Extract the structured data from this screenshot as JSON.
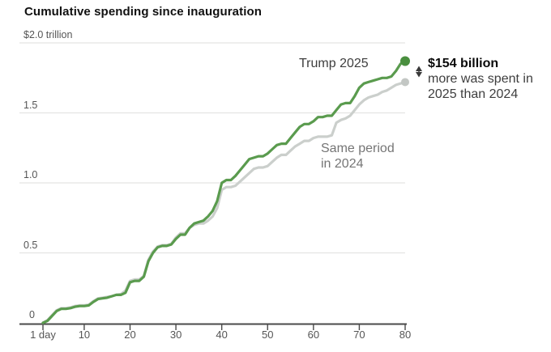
{
  "title": "Cumulative spending since inauguration",
  "labels": {
    "trump": "Trump 2025",
    "period_line1": "Same period",
    "period_line2": "in 2024"
  },
  "chart_data": {
    "type": "line",
    "title": "Cumulative spending since inauguration",
    "unit": "USD trillions",
    "xlabel": "",
    "ylabel": "",
    "xlim": [
      1,
      80
    ],
    "ylim": [
      0,
      2.0
    ],
    "grid": true,
    "legend_position": "inline-labels",
    "x_ticks": [
      {
        "value": 1,
        "label": "1 day"
      },
      {
        "value": 10,
        "label": "10"
      },
      {
        "value": 20,
        "label": "20"
      },
      {
        "value": 30,
        "label": "30"
      },
      {
        "value": 40,
        "label": "40"
      },
      {
        "value": 50,
        "label": "50"
      },
      {
        "value": 60,
        "label": "60"
      },
      {
        "value": 70,
        "label": "70"
      },
      {
        "value": 80,
        "label": "80"
      }
    ],
    "y_ticks": [
      {
        "value": 0,
        "label": "0"
      },
      {
        "value": 0.5,
        "label": "0.5"
      },
      {
        "value": 1.0,
        "label": "1.0"
      },
      {
        "value": 1.5,
        "label": "1.5"
      },
      {
        "value": 2.0,
        "label": "$2.0 trillion"
      }
    ],
    "x_start": 1,
    "x_step": 1,
    "series": [
      {
        "name": "Same period in 2024",
        "color": "#cbcfcc",
        "dot_color": "#c3c7c4",
        "end_value_trillions": 1.72,
        "values": [
          0.0,
          0.02,
          0.055,
          0.09,
          0.105,
          0.105,
          0.11,
          0.12,
          0.125,
          0.125,
          0.13,
          0.155,
          0.175,
          0.18,
          0.185,
          0.19,
          0.2,
          0.205,
          0.23,
          0.3,
          0.31,
          0.31,
          0.335,
          0.45,
          0.51,
          0.545,
          0.555,
          0.555,
          0.565,
          0.61,
          0.64,
          0.64,
          0.68,
          0.7,
          0.71,
          0.71,
          0.73,
          0.76,
          0.82,
          0.95,
          0.97,
          0.97,
          0.98,
          1.01,
          1.04,
          1.07,
          1.1,
          1.11,
          1.11,
          1.12,
          1.15,
          1.18,
          1.2,
          1.2,
          1.23,
          1.26,
          1.28,
          1.3,
          1.3,
          1.32,
          1.33,
          1.33,
          1.33,
          1.34,
          1.43,
          1.45,
          1.46,
          1.48,
          1.52,
          1.56,
          1.59,
          1.61,
          1.62,
          1.63,
          1.65,
          1.66,
          1.68,
          1.7,
          1.71,
          1.72
        ]
      },
      {
        "name": "Trump 2025",
        "color": "#5a9b4e",
        "dot_color": "#4a8f3f",
        "end_value_trillions": 1.87,
        "values": [
          0.0,
          0.015,
          0.05,
          0.085,
          0.1,
          0.1,
          0.105,
          0.115,
          0.12,
          0.12,
          0.125,
          0.15,
          0.17,
          0.175,
          0.18,
          0.19,
          0.2,
          0.2,
          0.215,
          0.29,
          0.3,
          0.3,
          0.33,
          0.44,
          0.5,
          0.54,
          0.55,
          0.55,
          0.56,
          0.6,
          0.63,
          0.63,
          0.68,
          0.71,
          0.72,
          0.73,
          0.76,
          0.8,
          0.87,
          1.0,
          1.02,
          1.02,
          1.05,
          1.09,
          1.13,
          1.17,
          1.18,
          1.19,
          1.19,
          1.21,
          1.24,
          1.27,
          1.28,
          1.28,
          1.32,
          1.36,
          1.4,
          1.42,
          1.42,
          1.44,
          1.47,
          1.47,
          1.48,
          1.48,
          1.52,
          1.56,
          1.57,
          1.57,
          1.62,
          1.68,
          1.71,
          1.72,
          1.73,
          1.74,
          1.75,
          1.75,
          1.76,
          1.8,
          1.85,
          1.87
        ]
      }
    ],
    "annotation": {
      "headline": "$154 billion",
      "line2": "more was spent in",
      "line3": "2025 than 2024"
    },
    "style_colors": {
      "axis": "#4a4a4a",
      "gridline": "#e4e4e2",
      "tick_label": "#555555",
      "arrow": "#3a3a3a"
    }
  }
}
